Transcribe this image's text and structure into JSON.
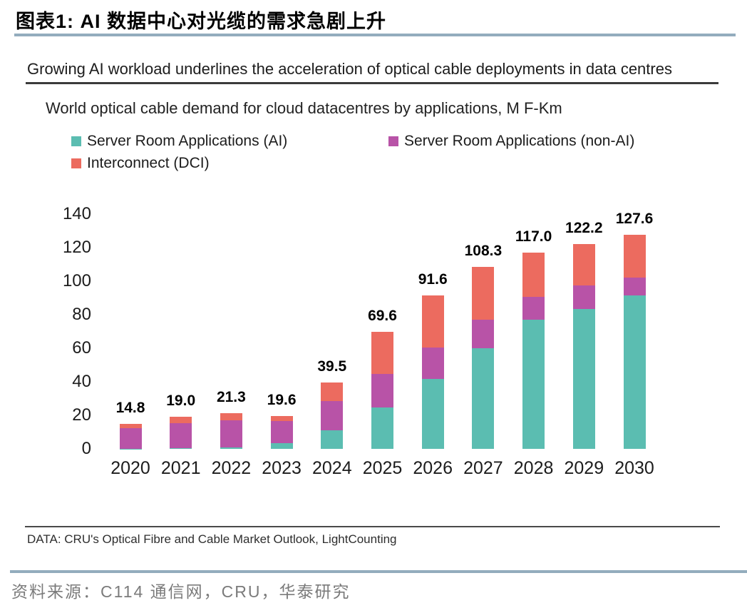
{
  "header": {
    "title": "图表1:  AI 数据中心对光缆的需求急剧上升"
  },
  "chart": {
    "heading": "Growing AI workload underlines the acceleration of optical cable deployments in data centres",
    "subtitle": "World optical cable demand for cloud datacentres by applications, M F-Km"
  },
  "chart_data": {
    "type": "bar",
    "stacked": true,
    "title": "Growing AI workload underlines the acceleration of optical cable deployments in data centres",
    "subtitle": "World optical cable demand for cloud datacentres by applications, M F-Km",
    "unit": "M F-Km",
    "categories": [
      "2020",
      "2021",
      "2022",
      "2023",
      "2024",
      "2025",
      "2026",
      "2027",
      "2028",
      "2029",
      "2030"
    ],
    "series": [
      {
        "name": "Server Room Applications (AI)",
        "color": "#5BBDB1",
        "values": [
          0.2,
          0.4,
          0.8,
          3.4,
          11.0,
          24.5,
          41.9,
          60.1,
          77.1,
          83.6,
          91.5
        ]
      },
      {
        "name": "Server Room Applications (non-AI)",
        "color": "#B853A7",
        "values": [
          12.1,
          14.9,
          16.3,
          13.0,
          17.5,
          20.0,
          18.6,
          16.8,
          13.7,
          13.8,
          10.8
        ]
      },
      {
        "name": "Interconnect (DCI)",
        "color": "#EC6B5F",
        "values": [
          2.5,
          3.7,
          4.2,
          3.2,
          11.0,
          25.1,
          31.1,
          31.4,
          26.2,
          24.8,
          25.3
        ]
      }
    ],
    "totals": [
      "14.8",
      "19.0",
      "21.3",
      "19.6",
      "39.5",
      "69.6",
      "91.6",
      "108.3",
      "117.0",
      "122.2",
      "127.6"
    ],
    "ylim": [
      0,
      140
    ],
    "yticks": [
      0,
      20,
      40,
      60,
      80,
      100,
      120,
      140
    ],
    "grid": false,
    "legend_position": "top"
  },
  "source": {
    "data_note": "DATA: CRU's Optical Fibre and Cable Market Outlook, LightCounting"
  },
  "footer": {
    "source": "资料来源：C114 通信网，CRU，华泰研究"
  },
  "colors": {
    "accent_rule": "#93ACBD",
    "heading_rule": "#3b3b3b",
    "footer_text": "#7b7b7b"
  }
}
